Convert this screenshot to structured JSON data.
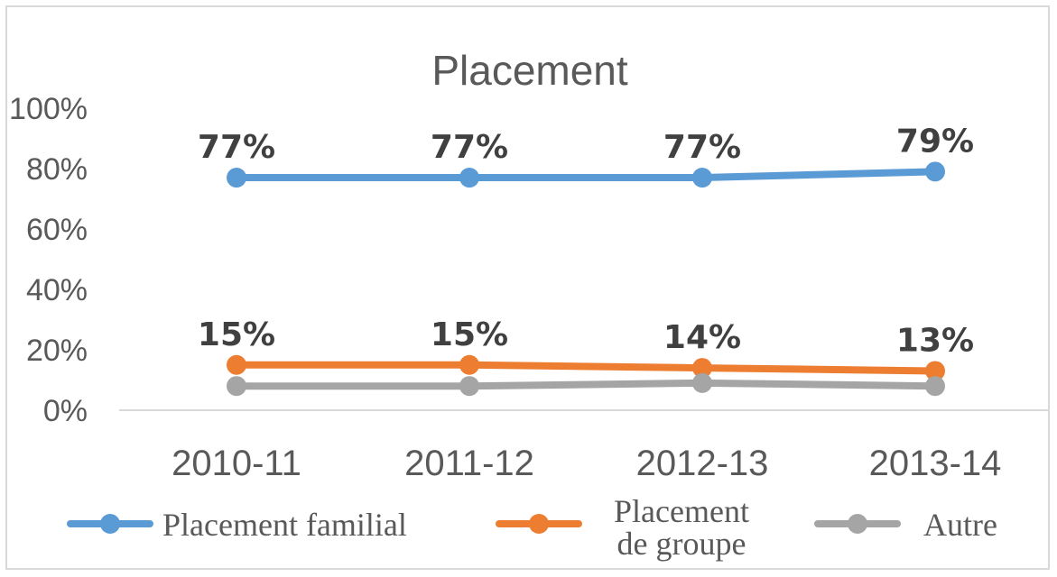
{
  "chart_data": {
    "type": "line",
    "title": "Placement",
    "categories": [
      "2010-11",
      "2011-12",
      "2012-13",
      "2013-14"
    ],
    "ylim": [
      0,
      100
    ],
    "yticks": [
      "0%",
      "20%",
      "40%",
      "60%",
      "80%",
      "100%"
    ],
    "grid": false,
    "legend_position": "bottom",
    "series": [
      {
        "name_lines": [
          "Placement familial"
        ],
        "color": "#5b9bd5",
        "values": [
          77,
          77,
          77,
          79
        ],
        "labels": [
          "77%",
          "77%",
          "77%",
          "79%"
        ]
      },
      {
        "name_lines": [
          "Placement",
          "de groupe"
        ],
        "color": "#ed7d31",
        "values": [
          15,
          15,
          14,
          13
        ],
        "labels": [
          "15%",
          "15%",
          "14%",
          "13%"
        ]
      },
      {
        "name_lines": [
          "Autre"
        ],
        "color": "#a5a5a5",
        "values": [
          8,
          8,
          9,
          8
        ],
        "labels": []
      }
    ]
  }
}
